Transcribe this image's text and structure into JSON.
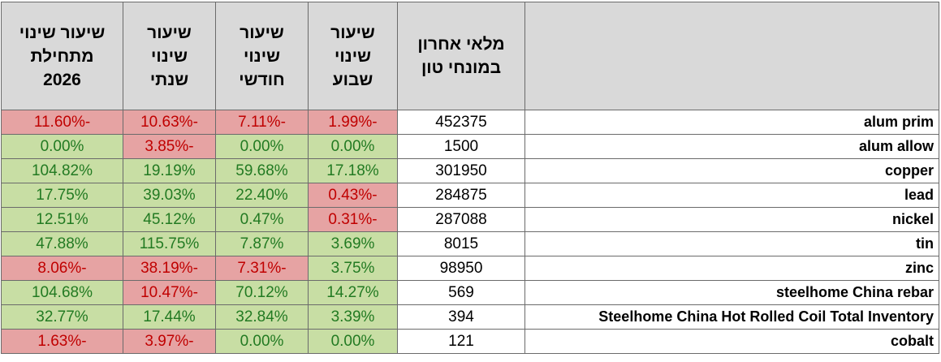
{
  "table": {
    "headers": [
      [
        "מלאי אחרון",
        "במונחי טון"
      ],
      [
        "שיעור",
        "שינוי",
        "שבוע"
      ],
      [
        "שיעור",
        "שינוי",
        "חודשי"
      ],
      [
        "שיעור",
        "שינוי",
        "שנתי"
      ],
      [
        "שיעור שינוי",
        "מתחילת",
        "2026"
      ]
    ],
    "rows": [
      [
        "alum prim",
        452375,
        "-1.99%",
        "-7.11%",
        "-10.63%",
        "-11.60%"
      ],
      [
        "alum allow",
        1500,
        "0.00%",
        "0.00%",
        "-3.85%",
        "0.00%"
      ],
      [
        "copper",
        301950,
        "17.18%",
        "59.68%",
        "19.19%",
        "104.82%"
      ],
      [
        "lead",
        284875,
        "-0.43%",
        "22.40%",
        "39.03%",
        "17.75%"
      ],
      [
        "nickel",
        287088,
        "-0.31%",
        "0.47%",
        "45.12%",
        "12.51%"
      ],
      [
        "tin",
        8015,
        "3.69%",
        "7.87%",
        "115.75%",
        "47.88%"
      ],
      [
        "zinc",
        98950,
        "3.75%",
        "-7.31%",
        "-38.19%",
        "-8.06%"
      ],
      [
        "steelhome China rebar",
        569,
        "14.27%",
        "70.12%",
        "-10.47%",
        "104.68%"
      ],
      [
        "Steelhome China Hot Rolled Coil Total Inventory",
        394,
        "3.39%",
        "32.84%",
        "17.44%",
        "32.77%"
      ],
      [
        "cobalt",
        121,
        "0.00%",
        "0.00%",
        "-3.97%",
        "-1.63%"
      ]
    ]
  }
}
